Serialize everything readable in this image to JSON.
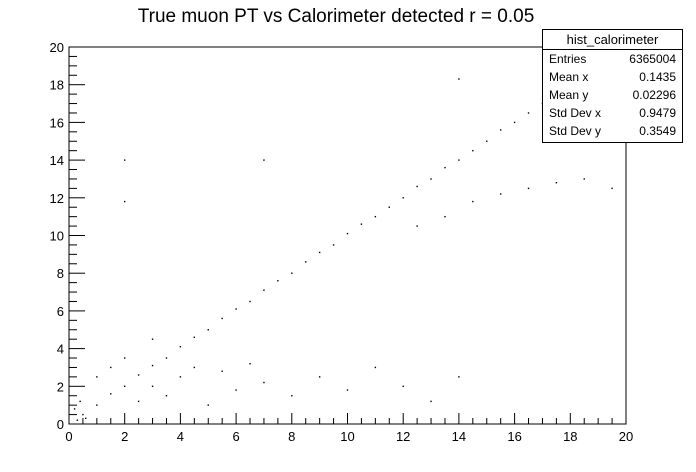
{
  "chart_data": {
    "type": "scatter",
    "title": "True muon PT vs Calorimeter detected r = 0.05",
    "xlabel": "",
    "ylabel": "",
    "xlim": [
      0,
      20
    ],
    "ylim": [
      0,
      20
    ],
    "x_ticks": [
      "0",
      "2",
      "4",
      "6",
      "8",
      "10",
      "12",
      "14",
      "16",
      "18",
      "20"
    ],
    "y_ticks": [
      "0",
      "2",
      "4",
      "6",
      "8",
      "10",
      "12",
      "14",
      "16",
      "18",
      "20"
    ],
    "grid": false,
    "series": [
      {
        "values": [
          {
            "x": 0.5,
            "y": 0.5
          },
          {
            "x": 1.0,
            "y": 1.0
          },
          {
            "x": 1.5,
            "y": 1.6
          },
          {
            "x": 2.0,
            "y": 2.0
          },
          {
            "x": 2.5,
            "y": 2.6
          },
          {
            "x": 3.0,
            "y": 3.1
          },
          {
            "x": 3.5,
            "y": 3.5
          },
          {
            "x": 4.0,
            "y": 4.1
          },
          {
            "x": 4.5,
            "y": 4.6
          },
          {
            "x": 5.0,
            "y": 5.0
          },
          {
            "x": 5.5,
            "y": 5.6
          },
          {
            "x": 6.0,
            "y": 6.1
          },
          {
            "x": 6.5,
            "y": 6.5
          },
          {
            "x": 7.0,
            "y": 7.1
          },
          {
            "x": 7.5,
            "y": 7.6
          },
          {
            "x": 8.0,
            "y": 8.0
          },
          {
            "x": 8.5,
            "y": 8.6
          },
          {
            "x": 9.0,
            "y": 9.1
          },
          {
            "x": 9.5,
            "y": 9.5
          },
          {
            "x": 10.0,
            "y": 10.1
          },
          {
            "x": 10.5,
            "y": 10.6
          },
          {
            "x": 11.0,
            "y": 11.0
          },
          {
            "x": 11.5,
            "y": 11.5
          },
          {
            "x": 12.0,
            "y": 12.0
          },
          {
            "x": 12.5,
            "y": 12.6
          },
          {
            "x": 13.0,
            "y": 13.0
          },
          {
            "x": 13.5,
            "y": 13.6
          },
          {
            "x": 14.0,
            "y": 14.0
          },
          {
            "x": 14.5,
            "y": 14.5
          },
          {
            "x": 15.0,
            "y": 15.0
          },
          {
            "x": 15.5,
            "y": 15.6
          },
          {
            "x": 16.0,
            "y": 16.0
          },
          {
            "x": 16.5,
            "y": 16.5
          },
          {
            "x": 17.0,
            "y": 17.0
          },
          {
            "x": 17.5,
            "y": 17.5
          },
          {
            "x": 18.0,
            "y": 17.8
          },
          {
            "x": 1.0,
            "y": 2.5
          },
          {
            "x": 1.5,
            "y": 3.0
          },
          {
            "x": 2.0,
            "y": 3.5
          },
          {
            "x": 2.5,
            "y": 1.2
          },
          {
            "x": 3.0,
            "y": 2.0
          },
          {
            "x": 3.0,
            "y": 4.5
          },
          {
            "x": 3.5,
            "y": 1.5
          },
          {
            "x": 4.0,
            "y": 2.5
          },
          {
            "x": 4.5,
            "y": 3.0
          },
          {
            "x": 5.0,
            "y": 1.0
          },
          {
            "x": 5.5,
            "y": 2.8
          },
          {
            "x": 6.0,
            "y": 1.8
          },
          {
            "x": 6.5,
            "y": 3.2
          },
          {
            "x": 7.0,
            "y": 2.2
          },
          {
            "x": 8.0,
            "y": 1.5
          },
          {
            "x": 9.0,
            "y": 2.5
          },
          {
            "x": 10.0,
            "y": 1.8
          },
          {
            "x": 11.0,
            "y": 3.0
          },
          {
            "x": 12.0,
            "y": 2.0
          },
          {
            "x": 13.0,
            "y": 1.2
          },
          {
            "x": 14.0,
            "y": 2.5
          },
          {
            "x": 12.5,
            "y": 10.5
          },
          {
            "x": 13.5,
            "y": 11.0
          },
          {
            "x": 14.5,
            "y": 11.8
          },
          {
            "x": 15.5,
            "y": 12.2
          },
          {
            "x": 16.5,
            "y": 12.5
          },
          {
            "x": 17.5,
            "y": 12.8
          },
          {
            "x": 18.5,
            "y": 13.0
          },
          {
            "x": 19.5,
            "y": 12.5
          },
          {
            "x": 2.0,
            "y": 14.0
          },
          {
            "x": 2.0,
            "y": 11.8
          },
          {
            "x": 7.0,
            "y": 14.0
          },
          {
            "x": 14.0,
            "y": 18.3
          },
          {
            "x": 0.3,
            "y": 0.2
          },
          {
            "x": 0.6,
            "y": 0.3
          },
          {
            "x": 0.2,
            "y": 0.8
          },
          {
            "x": 0.4,
            "y": 1.2
          }
        ]
      }
    ],
    "legend": "none"
  },
  "stats_box": {
    "title": "hist_calorimeter",
    "rows": [
      {
        "label": "Entries",
        "value": "6365004"
      },
      {
        "label": "Mean x",
        "value": "0.1435"
      },
      {
        "label": "Mean y",
        "value": "0.02296"
      },
      {
        "label": "Std Dev x",
        "value": "0.9479"
      },
      {
        "label": "Std Dev y",
        "value": "0.3549"
      }
    ]
  }
}
